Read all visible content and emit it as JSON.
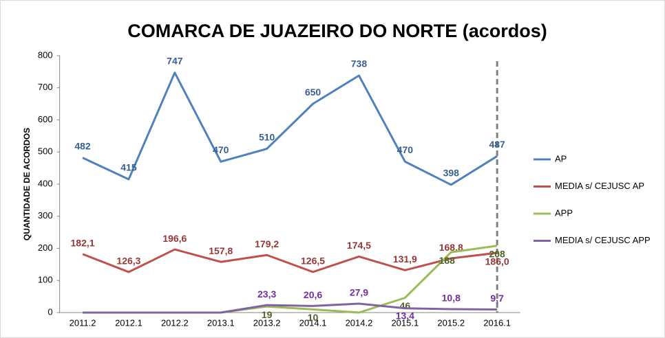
{
  "chart_data": {
    "type": "line",
    "title": "COMARCA DE JUAZEIRO DO NORTE (acordos)",
    "y_label": "QUANTIDADE DE ACORDOS",
    "categories": [
      "2011.2",
      "2012.1",
      "2012.2",
      "2013.1",
      "2013.2",
      "2014.1",
      "2014.2",
      "2015.1",
      "2015.2",
      "2016.1"
    ],
    "series": [
      {
        "name": "AP",
        "color": "#4f81bd",
        "label_color": "#376092",
        "values": [
          482,
          415,
          747,
          470,
          510,
          650,
          738,
          470,
          398,
          487
        ]
      },
      {
        "name": "MEDIA s/ CEJUSC AP",
        "color": "#c0504d",
        "label_color": "#953735",
        "values": [
          182.1,
          126.3,
          196.6,
          157.8,
          179.2,
          126.5,
          174.5,
          131.9,
          168.8,
          186.0
        ],
        "value_labels": [
          "182,1",
          "126,3",
          "196,6",
          "157,8",
          "179,2",
          "126,5",
          "174,5",
          "131,9",
          "168,8",
          "186,0"
        ]
      },
      {
        "name": "APP",
        "color": "#9bbb59",
        "label_color": "#4f6228",
        "values": [
          0,
          0,
          0,
          0,
          19,
          10,
          0,
          46,
          188,
          208
        ],
        "value_labels": [
          null,
          null,
          null,
          null,
          "19",
          "10",
          null,
          "46",
          "188",
          "208"
        ]
      },
      {
        "name": "MEDIA s/ CEJUSC APP",
        "color": "#8064a2",
        "label_color": "#7030a0",
        "values": [
          0,
          0,
          0,
          0,
          23.3,
          20.6,
          27.9,
          13.4,
          10.8,
          9.7
        ],
        "value_labels": [
          null,
          null,
          null,
          null,
          "23,3",
          "20,6",
          "27,9",
          "13,4",
          "10,8",
          "9,7"
        ]
      }
    ],
    "ylim": [
      0,
      800
    ],
    "yticks": [
      0,
      100,
      200,
      300,
      400,
      500,
      600,
      700,
      800
    ],
    "legend": "right"
  }
}
